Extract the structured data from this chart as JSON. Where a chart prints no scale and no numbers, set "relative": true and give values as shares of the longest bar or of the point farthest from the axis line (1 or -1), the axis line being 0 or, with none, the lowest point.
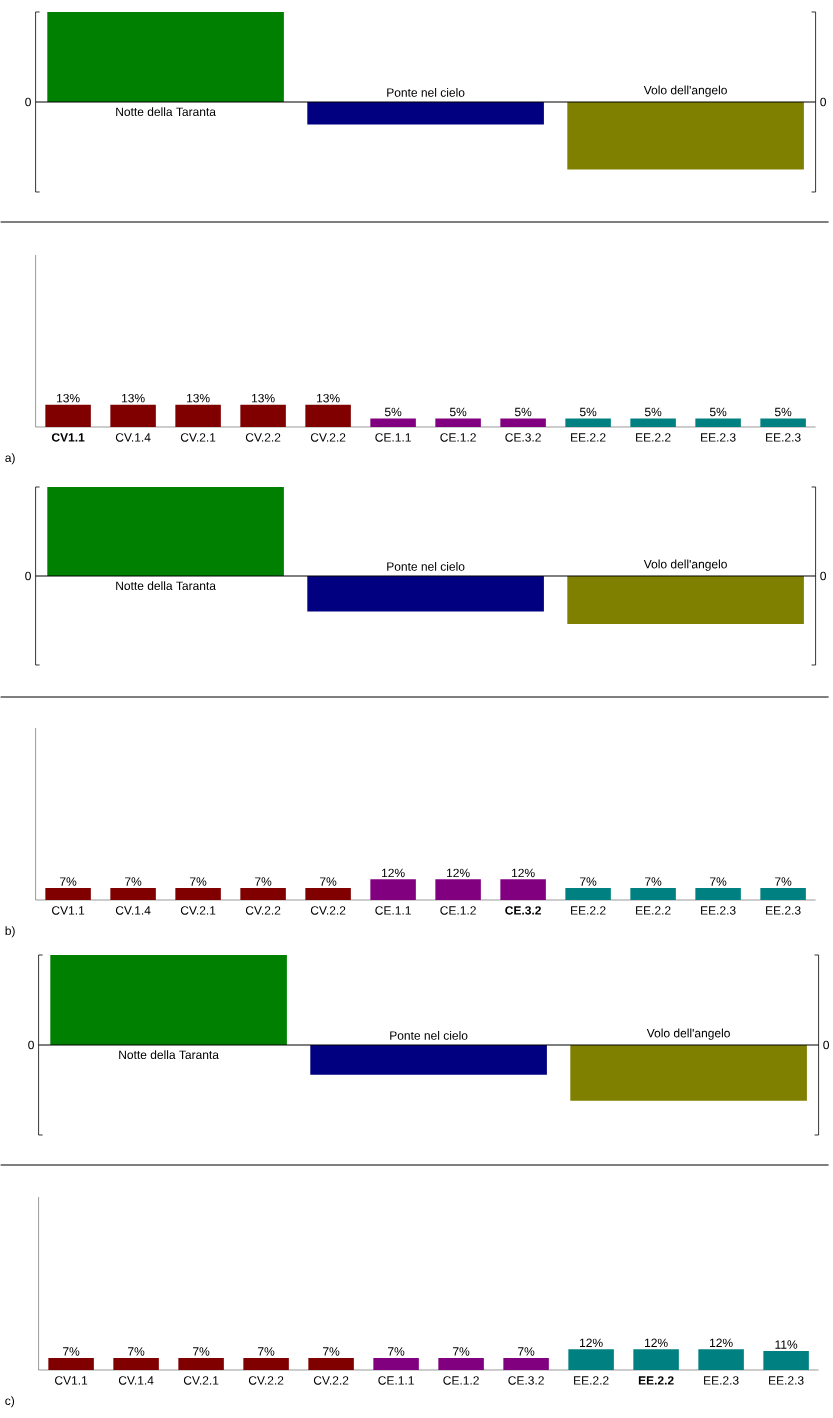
{
  "chart_data": [
    {
      "type": "bar",
      "relative": true,
      "categories": [
        "Notte della Taranta",
        "Ponte nel cielo",
        "Volo dell'angelo"
      ],
      "values": [
        1,
        -0.25,
        -0.75
      ],
      "colors": [
        "#008000",
        "#000080",
        "#808000"
      ],
      "annotations": [
        "0",
        "0"
      ]
    },
    {
      "type": "bar",
      "categories": [
        "**CV1.1**",
        "CV.1.4",
        "CV.2.1",
        "CV.2.2",
        "CV.2.2",
        "CE.1.1",
        "CE.1.2",
        "CE.3.2",
        "EE.2.2",
        "EE.2.2",
        "EE.2.3",
        "EE.2.3"
      ],
      "values": [
        13,
        13,
        13,
        13,
        13,
        5,
        5,
        5,
        5,
        5,
        5,
        5
      ],
      "value_labels": [
        "13%",
        "13%",
        "13%",
        "13%",
        "13%",
        "5%",
        "5%",
        "5%",
        "5%",
        "5%",
        "5%",
        "5%"
      ],
      "colors": [
        "#800000",
        "#800000",
        "#800000",
        "#800000",
        "#800000",
        "#800080",
        "#800080",
        "#800080",
        "#008080",
        "#008080",
        "#008080",
        "#008080"
      ],
      "ylim": [
        0,
        100
      ],
      "annotations": [
        "a)"
      ]
    },
    {
      "type": "bar",
      "relative": true,
      "categories": [
        "Notte della Taranta",
        "Ponte nel cielo",
        "Volo dell'angelo"
      ],
      "values": [
        1,
        -0.4,
        -0.54
      ],
      "colors": [
        "#008000",
        "#000080",
        "#808000"
      ],
      "annotations": [
        "0",
        "0"
      ]
    },
    {
      "type": "bar",
      "categories": [
        "CV1.1",
        "CV.1.4",
        "CV.2.1",
        "CV.2.2",
        "CV.2.2",
        "CE.1.1",
        "CE.1.2",
        "**CE.3.2**",
        "EE.2.2",
        "EE.2.2",
        "EE.2.3",
        "EE.2.3"
      ],
      "values": [
        7,
        7,
        7,
        7,
        7,
        12,
        12,
        12,
        7,
        7,
        7,
        7
      ],
      "value_labels": [
        "7%",
        "7%",
        "7%",
        "7%",
        "7%",
        "12%",
        "12%",
        "12%",
        "7%",
        "7%",
        "7%",
        "7%"
      ],
      "colors": [
        "#800000",
        "#800000",
        "#800000",
        "#800000",
        "#800000",
        "#800080",
        "#800080",
        "#800080",
        "#008080",
        "#008080",
        "#008080",
        "#008080"
      ],
      "ylim": [
        0,
        100
      ],
      "annotations": [
        "b)"
      ]
    },
    {
      "type": "bar",
      "relative": true,
      "categories": [
        "Notte della Taranta",
        "Ponte nel cielo",
        "Volo dell'angelo"
      ],
      "values": [
        1,
        -0.33,
        -0.62
      ],
      "colors": [
        "#008000",
        "#000080",
        "#808000"
      ],
      "annotations": [
        "0",
        "0"
      ]
    },
    {
      "type": "bar",
      "categories": [
        "CV1.1",
        "CV.1.4",
        "CV.2.1",
        "CV.2.2",
        "CV.2.2",
        "CE.1.1",
        "CE.1.2",
        "CE.3.2",
        "EE.2.2",
        "**EE.2.2**",
        "EE.2.3",
        "EE.2.3"
      ],
      "values": [
        7,
        7,
        7,
        7,
        7,
        7,
        7,
        7,
        12,
        12,
        12,
        11
      ],
      "value_labels": [
        "7%",
        "7%",
        "7%",
        "7%",
        "7%",
        "7%",
        "7%",
        "7%",
        "12%",
        "12%",
        "12%",
        "11%"
      ],
      "colors": [
        "#800000",
        "#800000",
        "#800000",
        "#800000",
        "#800000",
        "#800080",
        "#800080",
        "#800080",
        "#008080",
        "#008080",
        "#008080",
        "#008080"
      ],
      "ylim": [
        0,
        100
      ],
      "annotations": [
        "c)"
      ]
    }
  ]
}
